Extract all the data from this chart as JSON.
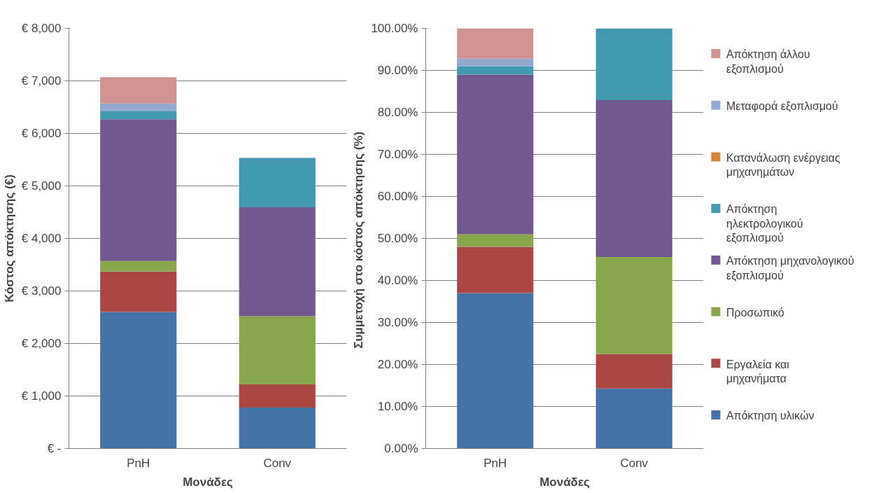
{
  "chart_data": [
    {
      "type": "bar",
      "stacked": true,
      "xlabel": "Μονάδες",
      "ylabel": "Κόστος απόκτησης (€)",
      "categories": [
        "PnH",
        "Conv"
      ],
      "series": [
        {
          "color": "#4572a7",
          "values": [
            2600,
            780
          ]
        },
        {
          "color": "#aa4643",
          "values": [
            770,
            440
          ]
        },
        {
          "color": "#89a54e",
          "values": [
            200,
            1300
          ]
        },
        {
          "color": "#71588f",
          "values": [
            2700,
            2075
          ]
        },
        {
          "color": "#4198af",
          "values": [
            150,
            940
          ]
        },
        {
          "color": "#db843d",
          "values": [
            0,
            0
          ]
        },
        {
          "color": "#93a9cf",
          "values": [
            150,
            0
          ]
        },
        {
          "color": "#d19392",
          "values": [
            500,
            0
          ]
        }
      ],
      "ylim": [
        0,
        8000
      ],
      "yticks": [
        {
          "value": 0,
          "label": "€ -"
        },
        {
          "value": 1000,
          "label": "€ 1,000"
        },
        {
          "value": 2000,
          "label": "€ 2,000"
        },
        {
          "value": 3000,
          "label": "€ 3,000"
        },
        {
          "value": 4000,
          "label": "€ 4,000"
        },
        {
          "value": 5000,
          "label": "€ 5,000"
        },
        {
          "value": 6000,
          "label": "€ 6,000"
        },
        {
          "value": 7000,
          "label": "€ 7,000"
        },
        {
          "value": 8000,
          "label": "€ 8,000"
        }
      ],
      "grid": "y",
      "legend": false
    },
    {
      "type": "bar",
      "stacked": true,
      "xlabel": "Μονάδες",
      "ylabel": "Συμμετοχή  στο κόστος απόκτησης (%)",
      "categories": [
        "PnH",
        "Conv"
      ],
      "series": [
        {
          "name": "Απόκτηση υλικών",
          "color": "#4572a7",
          "values": [
            37.0,
            14.3
          ]
        },
        {
          "name": "Εργαλεία και μηχανήματα",
          "color": "#aa4643",
          "values": [
            11.0,
            8.2
          ]
        },
        {
          "name": "Προσωπικό",
          "color": "#89a54e",
          "values": [
            3.0,
            23.1
          ]
        },
        {
          "name": "Απόκτηση μηχανολογικού εξοπλισμού",
          "color": "#71588f",
          "values": [
            38.0,
            37.3
          ]
        },
        {
          "name": "Απόκτηση ηλεκτρολογικού εξοπλισμού",
          "color": "#4198af",
          "values": [
            2.0,
            17.1
          ]
        },
        {
          "name": "Κατανάλωση ενέργειας μηχανημάτων",
          "color": "#db843d",
          "values": [
            0,
            0
          ]
        },
        {
          "name": "Μεταφορά εξοπλισμού",
          "color": "#93a9cf",
          "values": [
            1.8,
            0
          ]
        },
        {
          "name": "Απόκτηση άλλου εξοπλισμού",
          "color": "#d19392",
          "values": [
            7.2,
            0
          ]
        }
      ],
      "ylim": [
        0,
        100
      ],
      "yticks": [
        {
          "value": 0,
          "label": "0.00%"
        },
        {
          "value": 10,
          "label": "10.00%"
        },
        {
          "value": 20,
          "label": "20.00%"
        },
        {
          "value": 30,
          "label": "30.00%"
        },
        {
          "value": 40,
          "label": "40.00%"
        },
        {
          "value": 50,
          "label": "50.00%"
        },
        {
          "value": 60,
          "label": "60.00%"
        },
        {
          "value": 70,
          "label": "70.00%"
        },
        {
          "value": 80,
          "label": "80.00%"
        },
        {
          "value": 90,
          "label": "90.00%"
        },
        {
          "value": 100,
          "label": "100.00%"
        }
      ],
      "grid": "y",
      "legend": "right"
    }
  ]
}
